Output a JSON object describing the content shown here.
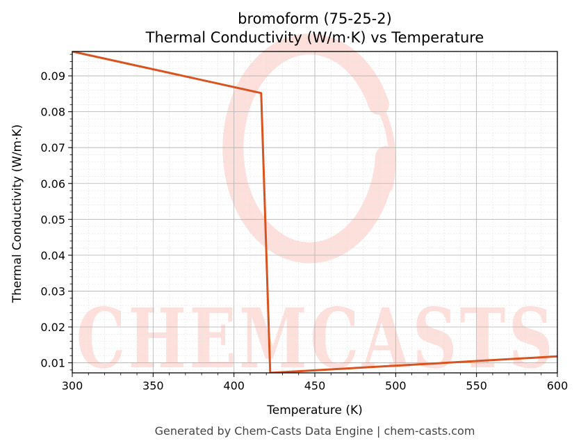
{
  "title_line1": "bromoform (75-25-2)",
  "title_line2": "Thermal Conductivity (W/m·K) vs Temperature",
  "footer": "Generated by Chem-Casts Data Engine | chem-casts.com",
  "watermark": "CHEMCASTS",
  "colors": {
    "line": "#d9531e",
    "watermark": "#fde0dc",
    "grid_major": "#b0b0b0",
    "grid_minor": "#e2e2e2"
  },
  "chart_data": {
    "type": "line",
    "title": "bromoform (75-25-2)\nThermal Conductivity (W/m·K) vs Temperature",
    "xlabel": "Temperature (K)",
    "ylabel": "Thermal Conductivity (W/m·K)",
    "xlim": [
      300,
      600
    ],
    "ylim": [
      0.0072,
      0.0968
    ],
    "xticks": [
      300,
      350,
      400,
      450,
      500,
      550,
      600
    ],
    "yticks": [
      0.01,
      0.02,
      0.03,
      0.04,
      0.05,
      0.06,
      0.07,
      0.08,
      0.09
    ],
    "xtick_labels": [
      "300",
      "350",
      "400",
      "450",
      "500",
      "550",
      "600"
    ],
    "ytick_labels": [
      "0.01",
      "0.02",
      "0.03",
      "0.04",
      "0.05",
      "0.06",
      "0.07",
      "0.08",
      "0.09"
    ],
    "grid": true,
    "minor_grid": true,
    "series": [
      {
        "x": [
          300,
          416.8,
          422.4,
          600
        ],
        "y": [
          0.0968,
          0.0852,
          0.0072,
          0.0118
        ]
      }
    ]
  }
}
